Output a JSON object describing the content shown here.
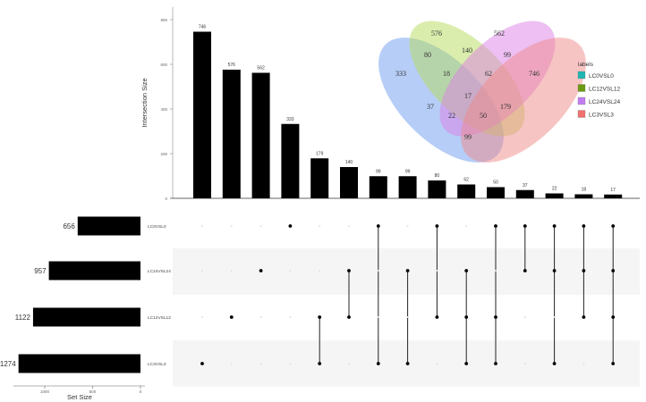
{
  "chart_data": [
    {
      "type": "bar",
      "ylabel": "Intersection Size",
      "ylim": [
        0,
        850
      ],
      "yticks": [
        0,
        200,
        400,
        600,
        800
      ],
      "values": [
        746,
        576,
        562,
        333,
        179,
        140,
        99,
        99,
        80,
        62,
        50,
        37,
        22,
        18,
        17
      ],
      "bar_color": "#000000"
    },
    {
      "type": "table",
      "sets": [
        "LC0VSL0",
        "LC24VSL24",
        "LC12VSL12",
        "LC3VSL3"
      ],
      "intersections": [
        [
          "LC3VSL3"
        ],
        [
          "LC12VSL12"
        ],
        [
          "LC24VSL24"
        ],
        [
          "LC0VSL0"
        ],
        [
          "LC12VSL12",
          "LC3VSL3"
        ],
        [
          "LC24VSL24",
          "LC12VSL12"
        ],
        [
          "LC0VSL0",
          "LC3VSL3"
        ],
        [
          "LC24VSL24",
          "LC3VSL3"
        ],
        [
          "LC0VSL0",
          "LC12VSL12"
        ],
        [
          "LC24VSL24",
          "LC12VSL12",
          "LC3VSL3"
        ],
        [
          "LC0VSL0",
          "LC12VSL12",
          "LC3VSL3"
        ],
        [
          "LC0VSL0",
          "LC24VSL24"
        ],
        [
          "LC0VSL0",
          "LC24VSL24",
          "LC3VSL3"
        ],
        [
          "LC0VSL0",
          "LC24VSL24",
          "LC12VSL12"
        ],
        [
          "LC0VSL0",
          "LC24VSL24",
          "LC12VSL12",
          "LC3VSL3"
        ]
      ]
    },
    {
      "type": "bar",
      "orientation": "horizontal-reversed",
      "xlabel": "Set Size",
      "categories": [
        "LC0VSL0",
        "LC24VSL24",
        "LC12VSL12",
        "LC3VSL3"
      ],
      "values": [
        656,
        957,
        1122,
        1274
      ],
      "xticks": [
        1000,
        500,
        0
      ]
    },
    {
      "type": "venn",
      "legend_title": "labels",
      "legend_placement": "right",
      "sets": [
        {
          "name": "LC0VSL0",
          "legend_color": "#20b5b0",
          "fill": "#6d9cf0"
        },
        {
          "name": "LC12VSL12",
          "legend_color": "#6b9a12",
          "fill": "#b6dc5c"
        },
        {
          "name": "LC24VSL24",
          "legend_color": "#c27cf0",
          "fill": "#dc80e6"
        },
        {
          "name": "LC3VSL3",
          "legend_color": "#f07070",
          "fill": "#f08a8a"
        }
      ],
      "region_labels": [
        "333",
        "576",
        "562",
        "746",
        "80",
        "140",
        "99",
        "18",
        "62",
        "17",
        "37",
        "179",
        "22",
        "50",
        "99"
      ]
    }
  ]
}
